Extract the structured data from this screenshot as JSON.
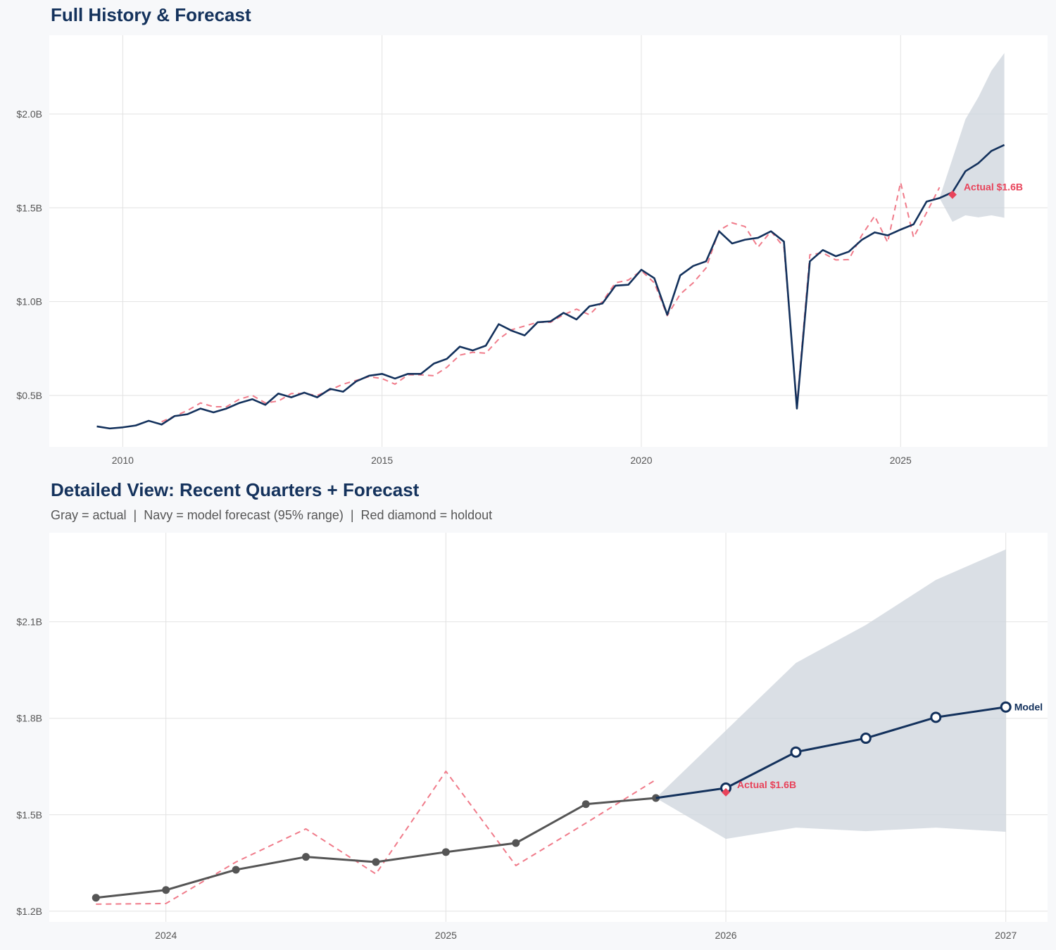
{
  "chart_data": [
    {
      "type": "line",
      "title": "Full History & Forecast",
      "xlim": [
        "2008-08-01",
        "2027-11-01"
      ],
      "ylim": [
        0.226,
        2.42
      ],
      "x_ticks": [
        "2010-01-01",
        "2015-01-01",
        "2020-01-01",
        "2025-01-01"
      ],
      "x_tick_labels": [
        "2010",
        "2015",
        "2020",
        "2025"
      ],
      "y_ticks": [
        0.5,
        1.0,
        1.5,
        2.0
      ],
      "y_tick_labels": [
        "$0.5B",
        "$1.0B",
        "$1.5B",
        "$2.0B"
      ],
      "grid": true,
      "colors": {
        "model": "#13315c",
        "dashed": "#f07b8a",
        "band": "#cdd4dc",
        "holdout": "#e8435a"
      },
      "series": [
        {
          "style": "solid",
          "color_key": "model",
          "points": [
            [
              "2009-07-01",
              0.335
            ],
            [
              "2009-10-01",
              0.324
            ],
            [
              "2010-01-01",
              0.33
            ],
            [
              "2010-04-01",
              0.34
            ],
            [
              "2010-07-01",
              0.365
            ],
            [
              "2010-10-01",
              0.345
            ],
            [
              "2011-01-01",
              0.39
            ],
            [
              "2011-04-01",
              0.4
            ],
            [
              "2011-07-01",
              0.43
            ],
            [
              "2011-10-01",
              0.41
            ],
            [
              "2012-01-01",
              0.43
            ],
            [
              "2012-04-01",
              0.46
            ],
            [
              "2012-07-01",
              0.48
            ],
            [
              "2012-10-01",
              0.45
            ],
            [
              "2013-01-01",
              0.51
            ],
            [
              "2013-04-01",
              0.49
            ],
            [
              "2013-07-01",
              0.515
            ],
            [
              "2013-10-01",
              0.49
            ],
            [
              "2014-01-01",
              0.535
            ],
            [
              "2014-04-01",
              0.52
            ],
            [
              "2014-07-01",
              0.575
            ],
            [
              "2014-10-01",
              0.605
            ],
            [
              "2015-01-01",
              0.615
            ],
            [
              "2015-04-01",
              0.59
            ],
            [
              "2015-07-01",
              0.615
            ],
            [
              "2015-10-01",
              0.615
            ],
            [
              "2016-01-01",
              0.67
            ],
            [
              "2016-04-01",
              0.695
            ],
            [
              "2016-07-01",
              0.76
            ],
            [
              "2016-10-01",
              0.74
            ],
            [
              "2017-01-01",
              0.765
            ],
            [
              "2017-04-01",
              0.88
            ],
            [
              "2017-07-01",
              0.845
            ],
            [
              "2017-10-01",
              0.82
            ],
            [
              "2018-01-01",
              0.89
            ],
            [
              "2018-04-01",
              0.895
            ],
            [
              "2018-07-01",
              0.94
            ],
            [
              "2018-10-01",
              0.905
            ],
            [
              "2019-01-01",
              0.975
            ],
            [
              "2019-04-01",
              0.99
            ],
            [
              "2019-07-01",
              1.085
            ],
            [
              "2019-10-01",
              1.09
            ],
            [
              "2020-01-01",
              1.17
            ],
            [
              "2020-04-01",
              1.125
            ],
            [
              "2020-07-01",
              0.93
            ],
            [
              "2020-10-01",
              1.14
            ],
            [
              "2021-01-01",
              1.19
            ],
            [
              "2021-04-01",
              1.215
            ],
            [
              "2021-07-01",
              1.375
            ],
            [
              "2021-10-01",
              1.31
            ],
            [
              "2022-01-01",
              1.33
            ],
            [
              "2022-04-01",
              1.34
            ],
            [
              "2022-07-01",
              1.375
            ],
            [
              "2022-10-01",
              1.32
            ],
            [
              "2023-01-01",
              0.43
            ],
            [
              "2023-04-01",
              1.215
            ],
            [
              "2023-07-01",
              1.275
            ],
            [
              "2023-10-01",
              1.242
            ],
            [
              "2024-01-01",
              1.266
            ],
            [
              "2024-04-01",
              1.329
            ],
            [
              "2024-07-01",
              1.369
            ],
            [
              "2024-10-01",
              1.353
            ],
            [
              "2025-01-01",
              1.384
            ],
            [
              "2025-04-01",
              1.412
            ],
            [
              "2025-07-01",
              1.533
            ],
            [
              "2025-10-01",
              1.552
            ],
            [
              "2026-01-01",
              1.583
            ],
            [
              "2026-04-01",
              1.695
            ],
            [
              "2026-07-01",
              1.738
            ],
            [
              "2026-10-01",
              1.803
            ],
            [
              "2027-01-01",
              1.835
            ]
          ]
        },
        {
          "style": "dashed",
          "color_key": "dashed",
          "points": [
            [
              "2010-10-01",
              0.36
            ],
            [
              "2011-01-01",
              0.39
            ],
            [
              "2011-04-01",
              0.42
            ],
            [
              "2011-07-01",
              0.46
            ],
            [
              "2011-10-01",
              0.44
            ],
            [
              "2012-01-01",
              0.44
            ],
            [
              "2012-04-01",
              0.48
            ],
            [
              "2012-07-01",
              0.5
            ],
            [
              "2012-10-01",
              0.46
            ],
            [
              "2013-01-01",
              0.47
            ],
            [
              "2013-04-01",
              0.51
            ],
            [
              "2013-07-01",
              0.51
            ],
            [
              "2013-10-01",
              0.5
            ],
            [
              "2014-01-01",
              0.53
            ],
            [
              "2014-04-01",
              0.56
            ],
            [
              "2014-07-01",
              0.58
            ],
            [
              "2014-10-01",
              0.6
            ],
            [
              "2015-01-01",
              0.59
            ],
            [
              "2015-04-01",
              0.56
            ],
            [
              "2015-07-01",
              0.61
            ],
            [
              "2015-10-01",
              0.61
            ],
            [
              "2016-01-01",
              0.605
            ],
            [
              "2016-04-01",
              0.65
            ],
            [
              "2016-07-01",
              0.715
            ],
            [
              "2016-10-01",
              0.73
            ],
            [
              "2017-01-01",
              0.725
            ],
            [
              "2017-04-01",
              0.8
            ],
            [
              "2017-07-01",
              0.85
            ],
            [
              "2017-10-01",
              0.87
            ],
            [
              "2018-01-01",
              0.89
            ],
            [
              "2018-04-01",
              0.89
            ],
            [
              "2018-07-01",
              0.93
            ],
            [
              "2018-10-01",
              0.96
            ],
            [
              "2019-01-01",
              0.93
            ],
            [
              "2019-04-01",
              1.0
            ],
            [
              "2019-07-01",
              1.1
            ],
            [
              "2019-10-01",
              1.115
            ],
            [
              "2020-01-01",
              1.165
            ],
            [
              "2020-04-01",
              1.1
            ],
            [
              "2020-07-01",
              0.925
            ],
            [
              "2020-10-01",
              1.04
            ],
            [
              "2021-01-01",
              1.1
            ],
            [
              "2021-04-01",
              1.18
            ],
            [
              "2021-07-01",
              1.38
            ],
            [
              "2021-10-01",
              1.42
            ],
            [
              "2022-01-01",
              1.4
            ],
            [
              "2022-04-01",
              1.29
            ],
            [
              "2022-07-01",
              1.375
            ],
            [
              "2022-10-01",
              1.29
            ],
            [
              "2023-01-01",
              0.45
            ],
            [
              "2023-04-01",
              1.25
            ],
            [
              "2023-07-01",
              1.26
            ],
            [
              "2023-10-01",
              1.222
            ],
            [
              "2024-01-01",
              1.224
            ],
            [
              "2024-04-01",
              1.353
            ],
            [
              "2024-07-01",
              1.456
            ],
            [
              "2024-10-01",
              1.316
            ],
            [
              "2025-01-01",
              1.635
            ],
            [
              "2025-04-01",
              1.342
            ],
            [
              "2025-07-01",
              1.474
            ],
            [
              "2025-10-01",
              1.609
            ]
          ]
        }
      ],
      "band": {
        "x": [
          "2025-10-01",
          "2026-01-01",
          "2026-04-01",
          "2026-07-01",
          "2026-10-01",
          "2027-01-01"
        ],
        "lower": [
          1.552,
          1.425,
          1.46,
          1.449,
          1.46,
          1.447
        ],
        "upper": [
          1.552,
          1.762,
          1.972,
          2.09,
          2.23,
          2.325
        ]
      },
      "holdout": {
        "x": "2026-01-01",
        "y": 1.57,
        "label": "Actual $1.6B"
      }
    },
    {
      "type": "line",
      "title": "Detailed View: Recent Quarters + Forecast",
      "subtitle": "Gray = actual  |  Navy = model forecast (95% range)  |  Red diamond = holdout",
      "xlim": [
        "2023-08-01",
        "2027-02-25"
      ],
      "ylim": [
        1.167,
        2.377
      ],
      "x_ticks": [
        "2024-01-01",
        "2025-01-01",
        "2026-01-01",
        "2027-01-01"
      ],
      "x_tick_labels": [
        "2024",
        "2025",
        "2026",
        "2027"
      ],
      "y_ticks": [
        1.2,
        1.5,
        1.8,
        2.1
      ],
      "y_tick_labels": [
        "$1.2B",
        "$1.5B",
        "$1.8B",
        "$2.1B"
      ],
      "grid": true,
      "colors": {
        "actual": "#555555",
        "model": "#13315c",
        "dashed": "#f07b8a",
        "band": "#cdd4dc",
        "holdout": "#e8435a"
      },
      "series": [
        {
          "style": "actual",
          "color_key": "actual",
          "points": [
            [
              "2023-10-01",
              1.242
            ],
            [
              "2024-01-01",
              1.266
            ],
            [
              "2024-04-01",
              1.329
            ],
            [
              "2024-07-01",
              1.369
            ],
            [
              "2024-10-01",
              1.353
            ],
            [
              "2025-01-01",
              1.384
            ],
            [
              "2025-04-01",
              1.412
            ],
            [
              "2025-07-01",
              1.533
            ],
            [
              "2025-10-01",
              1.552
            ]
          ]
        },
        {
          "style": "forecast",
          "color_key": "model",
          "label": "Model",
          "points": [
            [
              "2025-10-01",
              1.552
            ],
            [
              "2026-01-01",
              1.583
            ],
            [
              "2026-04-01",
              1.695
            ],
            [
              "2026-07-01",
              1.738
            ],
            [
              "2026-10-01",
              1.803
            ],
            [
              "2027-01-01",
              1.835
            ]
          ]
        },
        {
          "style": "dashed",
          "color_key": "dashed",
          "points": [
            [
              "2023-10-01",
              1.222
            ],
            [
              "2024-01-01",
              1.224
            ],
            [
              "2024-04-01",
              1.353
            ],
            [
              "2024-07-01",
              1.456
            ],
            [
              "2024-10-01",
              1.316
            ],
            [
              "2025-01-01",
              1.635
            ],
            [
              "2025-04-01",
              1.342
            ],
            [
              "2025-07-01",
              1.474
            ],
            [
              "2025-10-01",
              1.609
            ]
          ]
        }
      ],
      "band": {
        "x": [
          "2025-10-01",
          "2026-01-01",
          "2026-04-01",
          "2026-07-01",
          "2026-10-01",
          "2027-01-01"
        ],
        "lower": [
          1.552,
          1.425,
          1.46,
          1.449,
          1.46,
          1.447
        ],
        "upper": [
          1.552,
          1.762,
          1.972,
          2.09,
          2.23,
          2.325
        ]
      },
      "holdout": {
        "x": "2026-01-01",
        "y": 1.57,
        "label": "Actual $1.6B"
      }
    }
  ]
}
